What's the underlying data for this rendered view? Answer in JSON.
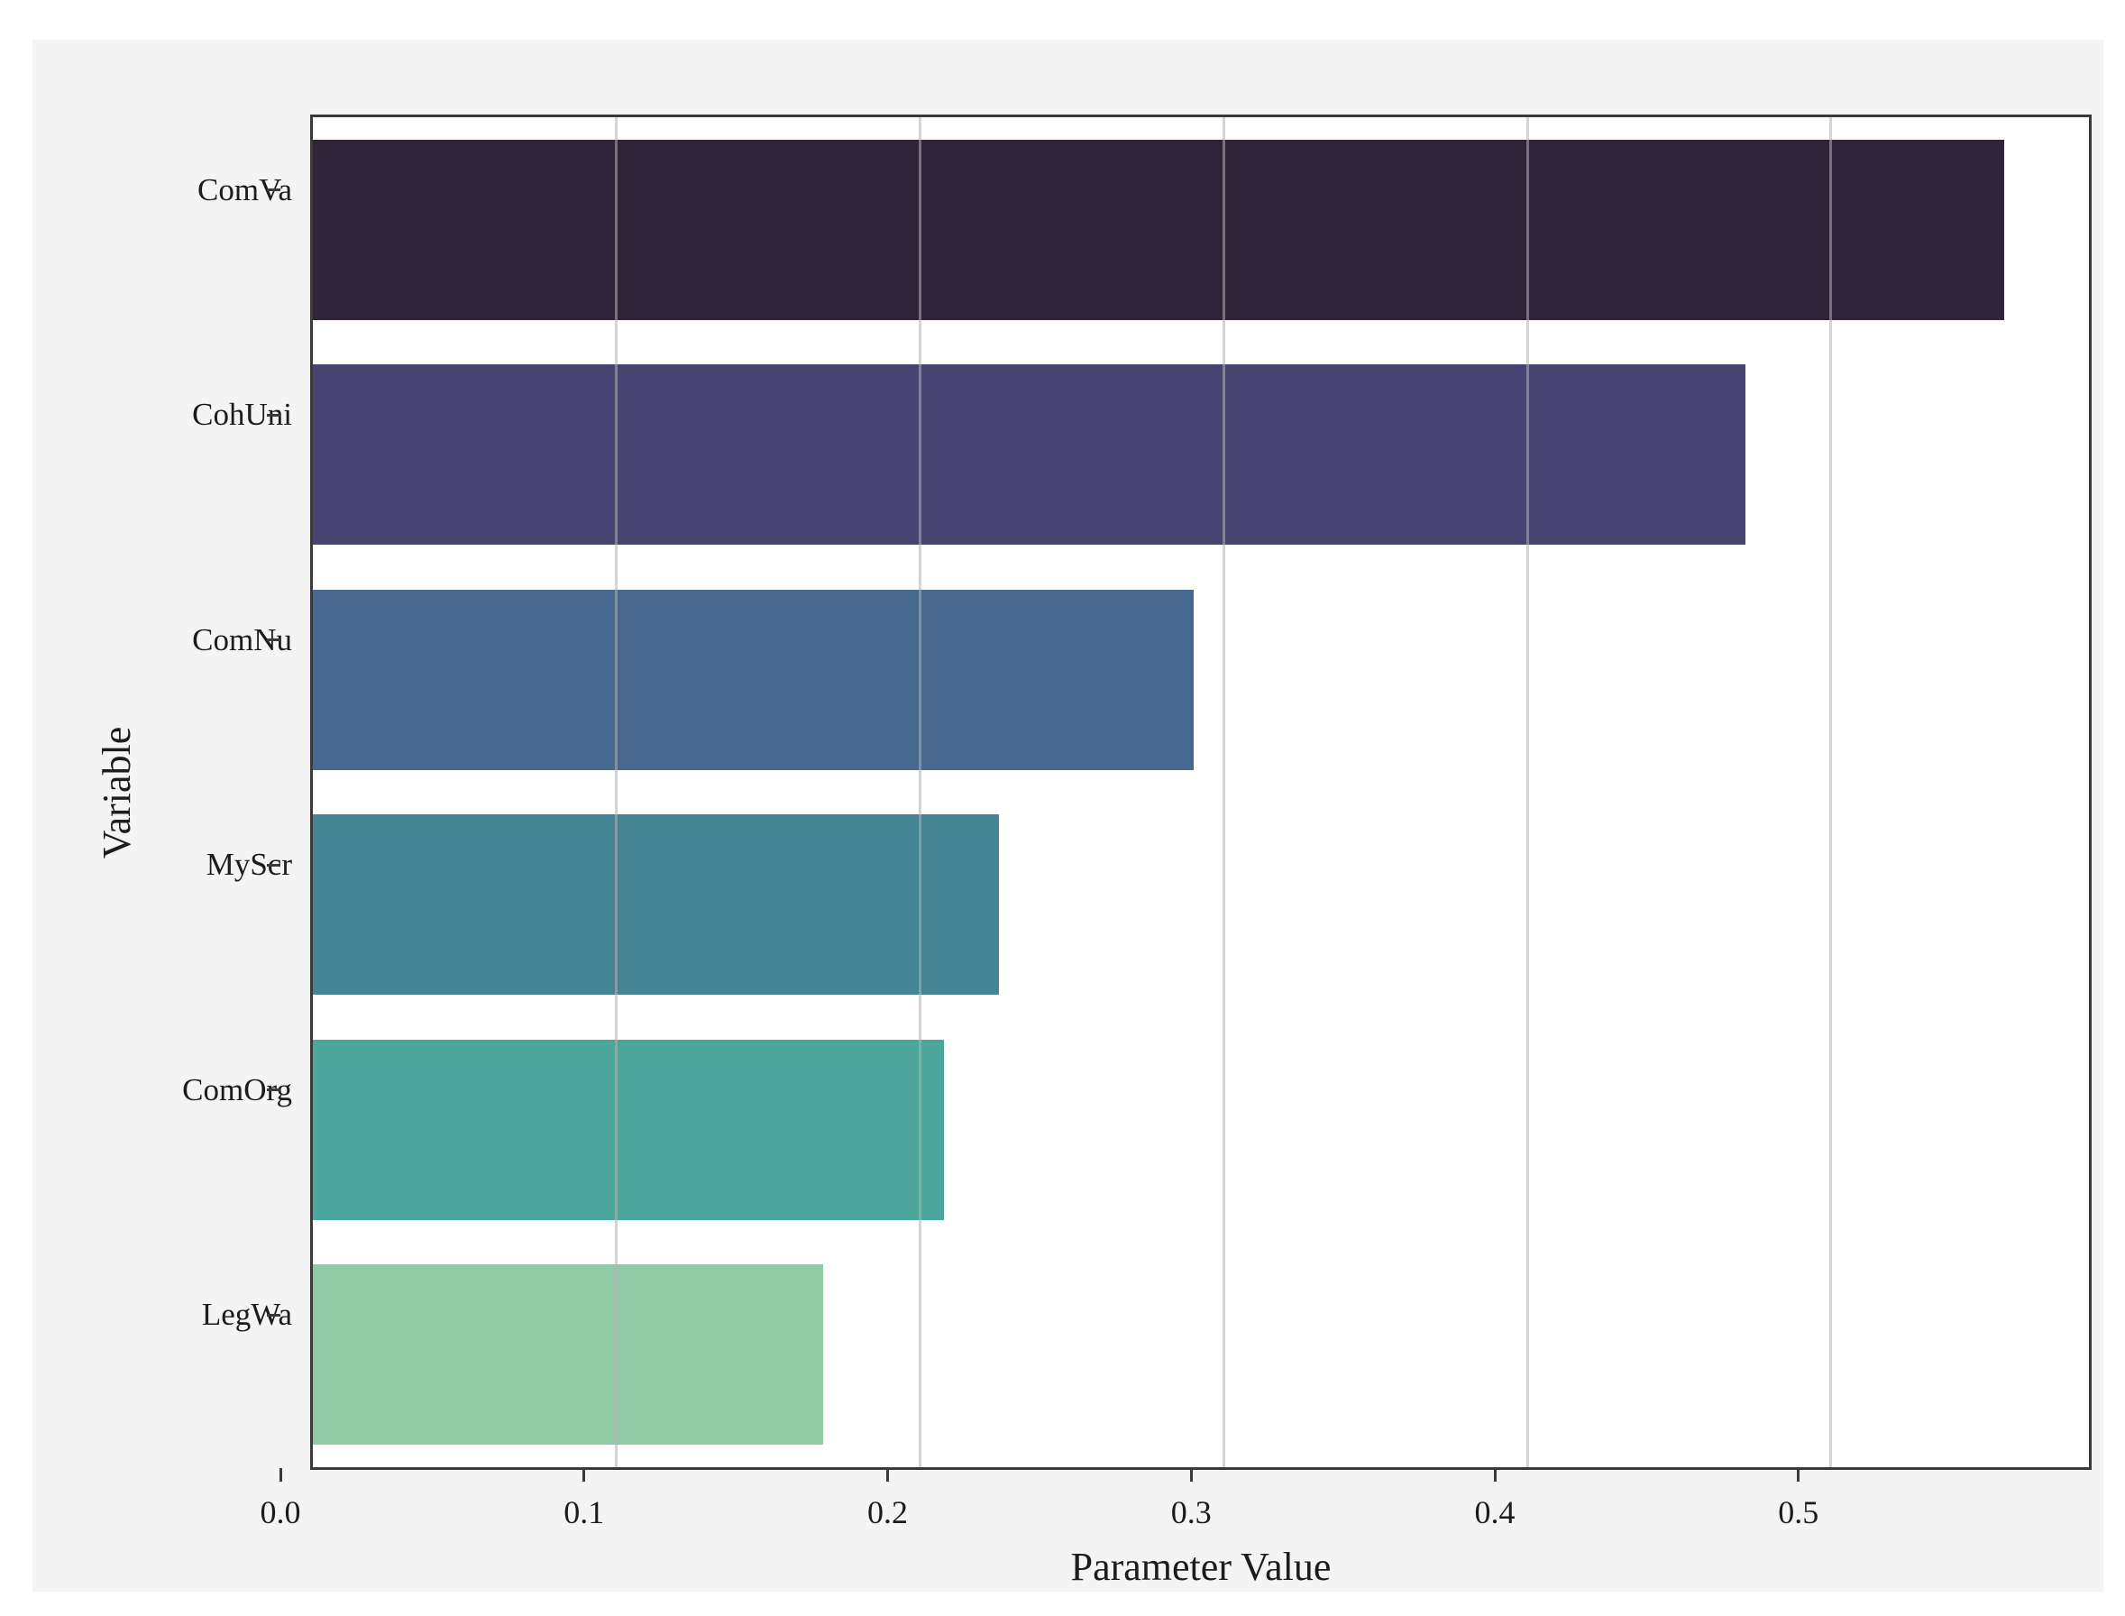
{
  "figure": {
    "page_background": "#ffffff",
    "figure_background": "#f4f4f5",
    "spine_color": "#3a3a3a",
    "grid_color": "rgba(178,178,178,0.55)",
    "text_color": "#1c1c1c"
  },
  "chart_data": {
    "type": "bar",
    "orientation": "horizontal",
    "title": "",
    "xlabel": "Parameter Value",
    "ylabel": "Variable",
    "categories": [
      "ComVa",
      "CohUni",
      "ComNu",
      "MyScr",
      "ComOrg",
      "LegWa"
    ],
    "values": [
      0.557,
      0.472,
      0.29,
      0.226,
      0.208,
      0.168
    ],
    "bar_colors": [
      "#2f2438",
      "#474472",
      "#46688f",
      "#448494",
      "#4ca69b",
      "#90cba8"
    ],
    "xlim": [
      0,
      0.585
    ],
    "xticks": [
      0,
      0.1,
      0.2,
      0.3,
      0.4,
      0.5
    ],
    "xtick_labels": [
      "0.0",
      "0.1",
      "0.2",
      "0.3",
      "0.4",
      "0.5"
    ],
    "grid": "vertical",
    "legend": "none",
    "bar_fill_fraction": 0.8
  }
}
